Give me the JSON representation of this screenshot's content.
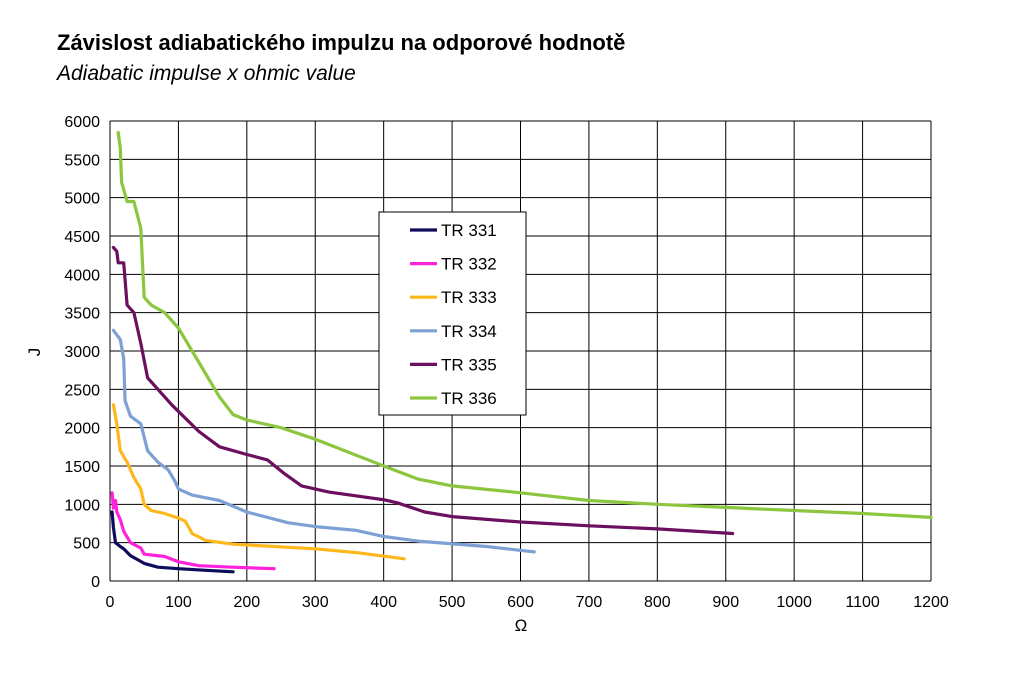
{
  "header": {
    "title": "Závislost adiabatického impulzu na odporové hodnotě",
    "subtitle": "Adiabatic impulse x ohmic value"
  },
  "chart_data": {
    "type": "line",
    "title": "Závislost adiabatického impulzu na odporové hodnotě",
    "subtitle": "Adiabatic impulse x ohmic value",
    "xlabel": "Ω",
    "ylabel": "J",
    "xlim": [
      0,
      1200
    ],
    "ylim": [
      0,
      6000
    ],
    "xticks": [
      0,
      100,
      200,
      300,
      400,
      500,
      600,
      700,
      800,
      900,
      1000,
      1100,
      1200
    ],
    "yticks": [
      0,
      500,
      1000,
      1500,
      2000,
      2500,
      3000,
      3500,
      4000,
      4500,
      5000,
      5500,
      6000
    ],
    "grid": true,
    "legend_position": "center-left",
    "series": [
      {
        "name": "TR 331",
        "color": "#0d0d5c",
        "points": [
          [
            3,
            900
          ],
          [
            5,
            700
          ],
          [
            8,
            500
          ],
          [
            15,
            450
          ],
          [
            20,
            420
          ],
          [
            30,
            330
          ],
          [
            40,
            280
          ],
          [
            50,
            230
          ],
          [
            70,
            180
          ],
          [
            100,
            160
          ],
          [
            140,
            140
          ],
          [
            180,
            120
          ]
        ]
      },
      {
        "name": "TR 332",
        "color": "#ff22dd",
        "points": [
          [
            3,
            1150
          ],
          [
            5,
            950
          ],
          [
            8,
            1050
          ],
          [
            10,
            900
          ],
          [
            15,
            800
          ],
          [
            20,
            650
          ],
          [
            30,
            500
          ],
          [
            45,
            430
          ],
          [
            50,
            350
          ],
          [
            80,
            320
          ],
          [
            100,
            250
          ],
          [
            130,
            200
          ],
          [
            180,
            180
          ],
          [
            240,
            160
          ]
        ]
      },
      {
        "name": "TR 333",
        "color": "#ffb81c",
        "points": [
          [
            5,
            2300
          ],
          [
            10,
            2050
          ],
          [
            15,
            1700
          ],
          [
            25,
            1550
          ],
          [
            35,
            1350
          ],
          [
            45,
            1200
          ],
          [
            50,
            1000
          ],
          [
            60,
            920
          ],
          [
            80,
            880
          ],
          [
            100,
            820
          ],
          [
            110,
            780
          ],
          [
            120,
            620
          ],
          [
            140,
            530
          ],
          [
            180,
            480
          ],
          [
            300,
            420
          ],
          [
            360,
            370
          ],
          [
            430,
            290
          ]
        ]
      },
      {
        "name": "TR 334",
        "color": "#7da1d4",
        "points": [
          [
            5,
            3270
          ],
          [
            15,
            3150
          ],
          [
            20,
            2900
          ],
          [
            22,
            2350
          ],
          [
            30,
            2150
          ],
          [
            45,
            2050
          ],
          [
            55,
            1700
          ],
          [
            70,
            1550
          ],
          [
            85,
            1450
          ],
          [
            95,
            1300
          ],
          [
            100,
            1200
          ],
          [
            120,
            1120
          ],
          [
            160,
            1050
          ],
          [
            200,
            900
          ],
          [
            260,
            760
          ],
          [
            300,
            710
          ],
          [
            360,
            660
          ],
          [
            400,
            580
          ],
          [
            450,
            520
          ],
          [
            550,
            450
          ],
          [
            620,
            380
          ]
        ]
      },
      {
        "name": "TR 335",
        "color": "#6b0f5e",
        "points": [
          [
            5,
            4350
          ],
          [
            10,
            4300
          ],
          [
            12,
            4150
          ],
          [
            20,
            4150
          ],
          [
            25,
            3600
          ],
          [
            35,
            3500
          ],
          [
            45,
            3100
          ],
          [
            55,
            2650
          ],
          [
            70,
            2500
          ],
          [
            90,
            2300
          ],
          [
            130,
            1950
          ],
          [
            160,
            1750
          ],
          [
            200,
            1650
          ],
          [
            230,
            1580
          ],
          [
            255,
            1400
          ],
          [
            280,
            1240
          ],
          [
            320,
            1160
          ],
          [
            400,
            1060
          ],
          [
            420,
            1020
          ],
          [
            460,
            900
          ],
          [
            500,
            840
          ],
          [
            600,
            770
          ],
          [
            700,
            720
          ],
          [
            800,
            680
          ],
          [
            910,
            620
          ]
        ]
      },
      {
        "name": "TR 336",
        "color": "#8cc63f",
        "points": [
          [
            12,
            5850
          ],
          [
            15,
            5650
          ],
          [
            17,
            5200
          ],
          [
            25,
            4950
          ],
          [
            35,
            4950
          ],
          [
            45,
            4600
          ],
          [
            50,
            3700
          ],
          [
            60,
            3600
          ],
          [
            80,
            3500
          ],
          [
            100,
            3300
          ],
          [
            120,
            3000
          ],
          [
            140,
            2700
          ],
          [
            160,
            2400
          ],
          [
            180,
            2170
          ],
          [
            200,
            2100
          ],
          [
            250,
            2000
          ],
          [
            300,
            1850
          ],
          [
            400,
            1500
          ],
          [
            450,
            1330
          ],
          [
            500,
            1240
          ],
          [
            600,
            1150
          ],
          [
            700,
            1050
          ],
          [
            800,
            1000
          ],
          [
            900,
            960
          ],
          [
            1000,
            920
          ],
          [
            1100,
            880
          ],
          [
            1200,
            830
          ]
        ]
      }
    ]
  }
}
